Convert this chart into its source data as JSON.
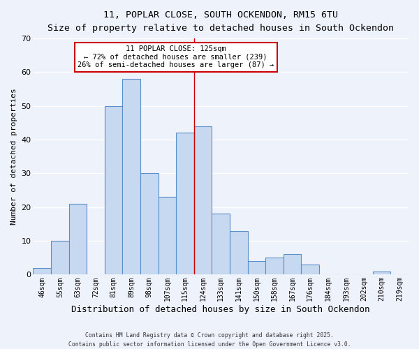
{
  "title_line1": "11, POPLAR CLOSE, SOUTH OCKENDON, RM15 6TU",
  "title_line2": "Size of property relative to detached houses in South Ockendon",
  "xlabel": "Distribution of detached houses by size in South Ockendon",
  "ylabel": "Number of detached properties",
  "bin_labels": [
    "46sqm",
    "55sqm",
    "63sqm",
    "72sqm",
    "81sqm",
    "89sqm",
    "98sqm",
    "107sqm",
    "115sqm",
    "124sqm",
    "133sqm",
    "141sqm",
    "150sqm",
    "158sqm",
    "167sqm",
    "176sqm",
    "184sqm",
    "193sqm",
    "202sqm",
    "210sqm",
    "219sqm"
  ],
  "bar_heights": [
    2,
    10,
    21,
    0,
    50,
    58,
    30,
    23,
    42,
    44,
    18,
    13,
    4,
    5,
    6,
    3,
    0,
    0,
    0,
    1,
    0
  ],
  "bar_color": "#c6d9f1",
  "bar_edge_color": "#5b8fcc",
  "vline_color": "#cc0000",
  "ylim": [
    0,
    70
  ],
  "yticks": [
    0,
    10,
    20,
    30,
    40,
    50,
    60,
    70
  ],
  "annotation_title": "11 POPLAR CLOSE: 125sqm",
  "annotation_line2": "← 72% of detached houses are smaller (239)",
  "annotation_line3": "26% of semi-detached houses are larger (87) →",
  "annotation_box_color": "#ffffff",
  "annotation_box_edge": "#cc0000",
  "footer_line1": "Contains HM Land Registry data © Crown copyright and database right 2025.",
  "footer_line2": "Contains public sector information licensed under the Open Government Licence v3.0.",
  "background_color": "#eef2fb",
  "grid_color": "#ffffff"
}
